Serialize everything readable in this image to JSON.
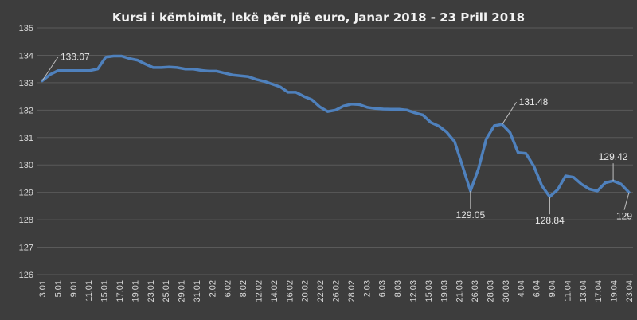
{
  "chart_data": {
    "type": "line",
    "title": "Kursi i këmbimit, lekë për një euro, Janar 2018 - 23 Prill 2018",
    "xlabel": "",
    "ylabel": "",
    "ylim": [
      126,
      135
    ],
    "yticks": [
      "126",
      "127",
      "128",
      "129",
      "130",
      "131",
      "132",
      "133",
      "134",
      "135"
    ],
    "xticks": [
      "3.01",
      "5.01",
      "9.01",
      "11.01",
      "15.01",
      "17.01",
      "19.01",
      "23.01",
      "25.01",
      "29.01",
      "31.01",
      "2.02",
      "6.02",
      "8.02",
      "12.02",
      "14.02",
      "16.02",
      "20.02",
      "22.02",
      "26.02",
      "28.02",
      "2.03",
      "6.03",
      "8.03",
      "12.03",
      "15.03",
      "19.03",
      "21.03",
      "26.03",
      "28.03",
      "30.03",
      "4.04",
      "6.04",
      "9.04",
      "11.04",
      "13.04",
      "17.04",
      "19.04",
      "23.04"
    ],
    "grid": "horizontal",
    "color": "#4f81bd",
    "series": [
      {
        "values": [
          133.07,
          133.3,
          133.44,
          133.44,
          133.44,
          133.44,
          133.44,
          133.5,
          133.93,
          133.97,
          133.97,
          133.88,
          133.82,
          133.68,
          133.55,
          133.55,
          133.57,
          133.55,
          133.5,
          133.5,
          133.45,
          133.42,
          133.42,
          133.35,
          133.28,
          133.25,
          133.22,
          133.12,
          133.05,
          132.95,
          132.85,
          132.65,
          132.65,
          132.5,
          132.38,
          132.12,
          131.95,
          132.0,
          132.15,
          132.22,
          132.2,
          132.1,
          132.06,
          132.04,
          132.03,
          132.03,
          132.0,
          131.9,
          131.82,
          131.55,
          131.42,
          131.2,
          130.85,
          129.95,
          129.05,
          129.85,
          130.95,
          131.43,
          131.48,
          131.18,
          130.45,
          130.42,
          129.95,
          129.25,
          128.84,
          129.1,
          129.6,
          129.55,
          129.3,
          129.12,
          129.05,
          129.35,
          129.42,
          129.3,
          129.0
        ]
      }
    ],
    "annotations": [
      {
        "text": "133.07",
        "index": 0
      },
      {
        "text": "131.48",
        "index": 58
      },
      {
        "text": "129.05",
        "index": 54
      },
      {
        "text": "128.84",
        "index": 64
      },
      {
        "text": "129.42",
        "index": 72
      },
      {
        "text": "129",
        "index": 74
      }
    ]
  }
}
